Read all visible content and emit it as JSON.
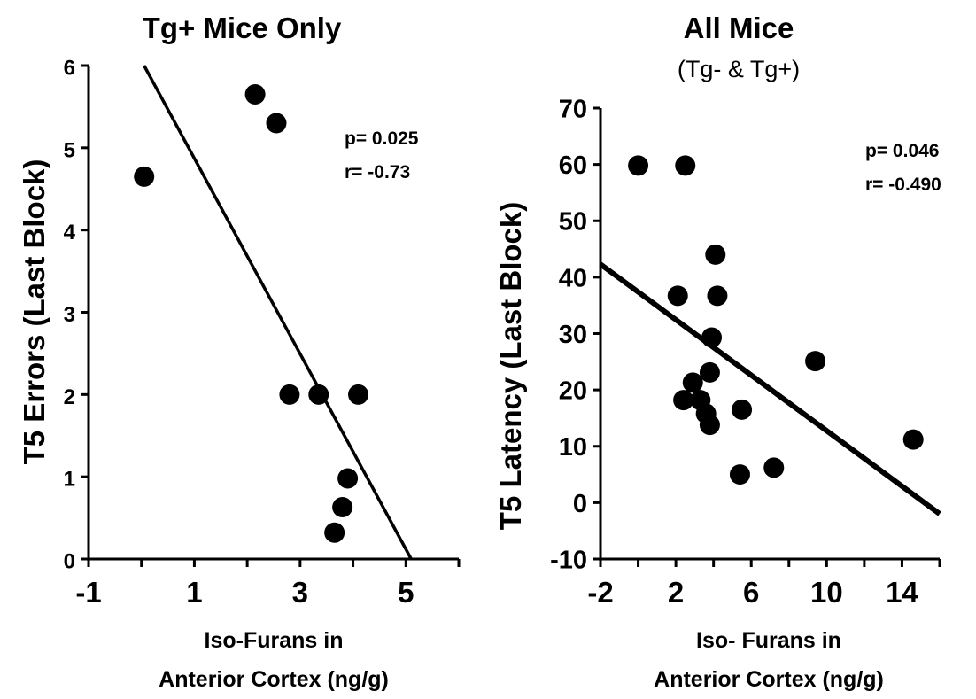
{
  "chart_data": [
    {
      "type": "scatter",
      "title": "Tg+ Mice Only",
      "subtitle": "",
      "ylabel": "T5 Errors (Last Block)",
      "xlabel_lines": [
        "Iso-Furans in",
        "Anterior Cortex (ng/g)"
      ],
      "xlim": [
        -1,
        6
      ],
      "ylim": [
        0,
        6
      ],
      "xticks": [
        -1,
        1,
        3,
        5
      ],
      "yticks": [
        0,
        1,
        2,
        3,
        4,
        5,
        6
      ],
      "x_tick_labels": [
        "-1",
        "1",
        "3",
        "5"
      ],
      "y_tick_labels": [
        "0",
        "1",
        "2",
        "3",
        "4",
        "5",
        "6"
      ],
      "grid": false,
      "points": [
        {
          "x": 0.05,
          "y": 4.65
        },
        {
          "x": 2.15,
          "y": 5.65
        },
        {
          "x": 2.55,
          "y": 5.3
        },
        {
          "x": 2.8,
          "y": 2.0
        },
        {
          "x": 3.35,
          "y": 2.0
        },
        {
          "x": 4.1,
          "y": 2.0
        },
        {
          "x": 3.9,
          "y": 0.98
        },
        {
          "x": 3.8,
          "y": 0.63
        },
        {
          "x": 3.65,
          "y": 0.32
        }
      ],
      "fit_line": [
        {
          "x": 0.05,
          "y": 6.0
        },
        {
          "x": 5.1,
          "y": 0.0
        }
      ],
      "stats": [
        "p= 0.025",
        "r= -0.73"
      ]
    },
    {
      "type": "scatter",
      "title": "All Mice",
      "subtitle": "(Tg- & Tg+)",
      "ylabel": "T5 Latency (Last Block)",
      "xlabel_lines": [
        "Iso- Furans in",
        "Anterior Cortex (ng/g)"
      ],
      "xlim": [
        -2,
        16
      ],
      "ylim": [
        -10,
        70
      ],
      "xticks": [
        -2,
        2,
        6,
        10,
        14
      ],
      "yticks": [
        -10,
        0,
        10,
        20,
        30,
        40,
        50,
        60,
        70
      ],
      "x_tick_labels": [
        "-2",
        "2",
        "6",
        "10",
        "14"
      ],
      "y_tick_labels": [
        "-10",
        "0",
        "10",
        "20",
        "30",
        "40",
        "50",
        "60",
        "70"
      ],
      "grid": false,
      "points": [
        {
          "x": 0.0,
          "y": 59.8
        },
        {
          "x": 2.5,
          "y": 59.8
        },
        {
          "x": 2.1,
          "y": 36.7
        },
        {
          "x": 4.1,
          "y": 44.0
        },
        {
          "x": 4.2,
          "y": 36.7
        },
        {
          "x": 3.9,
          "y": 29.3
        },
        {
          "x": 3.8,
          "y": 23.1
        },
        {
          "x": 2.9,
          "y": 21.3
        },
        {
          "x": 2.4,
          "y": 18.2
        },
        {
          "x": 3.3,
          "y": 18.2
        },
        {
          "x": 3.6,
          "y": 15.8
        },
        {
          "x": 3.8,
          "y": 13.8
        },
        {
          "x": 5.5,
          "y": 16.5
        },
        {
          "x": 5.4,
          "y": 5.0
        },
        {
          "x": 7.2,
          "y": 6.2
        },
        {
          "x": 9.4,
          "y": 25.1
        },
        {
          "x": 14.6,
          "y": 11.2
        }
      ],
      "fit_line": [
        {
          "x": -2.0,
          "y": 42.3
        },
        {
          "x": 16.0,
          "y": -2.0
        }
      ],
      "stats": [
        "p= 0.046",
        "r= -0.490"
      ]
    }
  ]
}
